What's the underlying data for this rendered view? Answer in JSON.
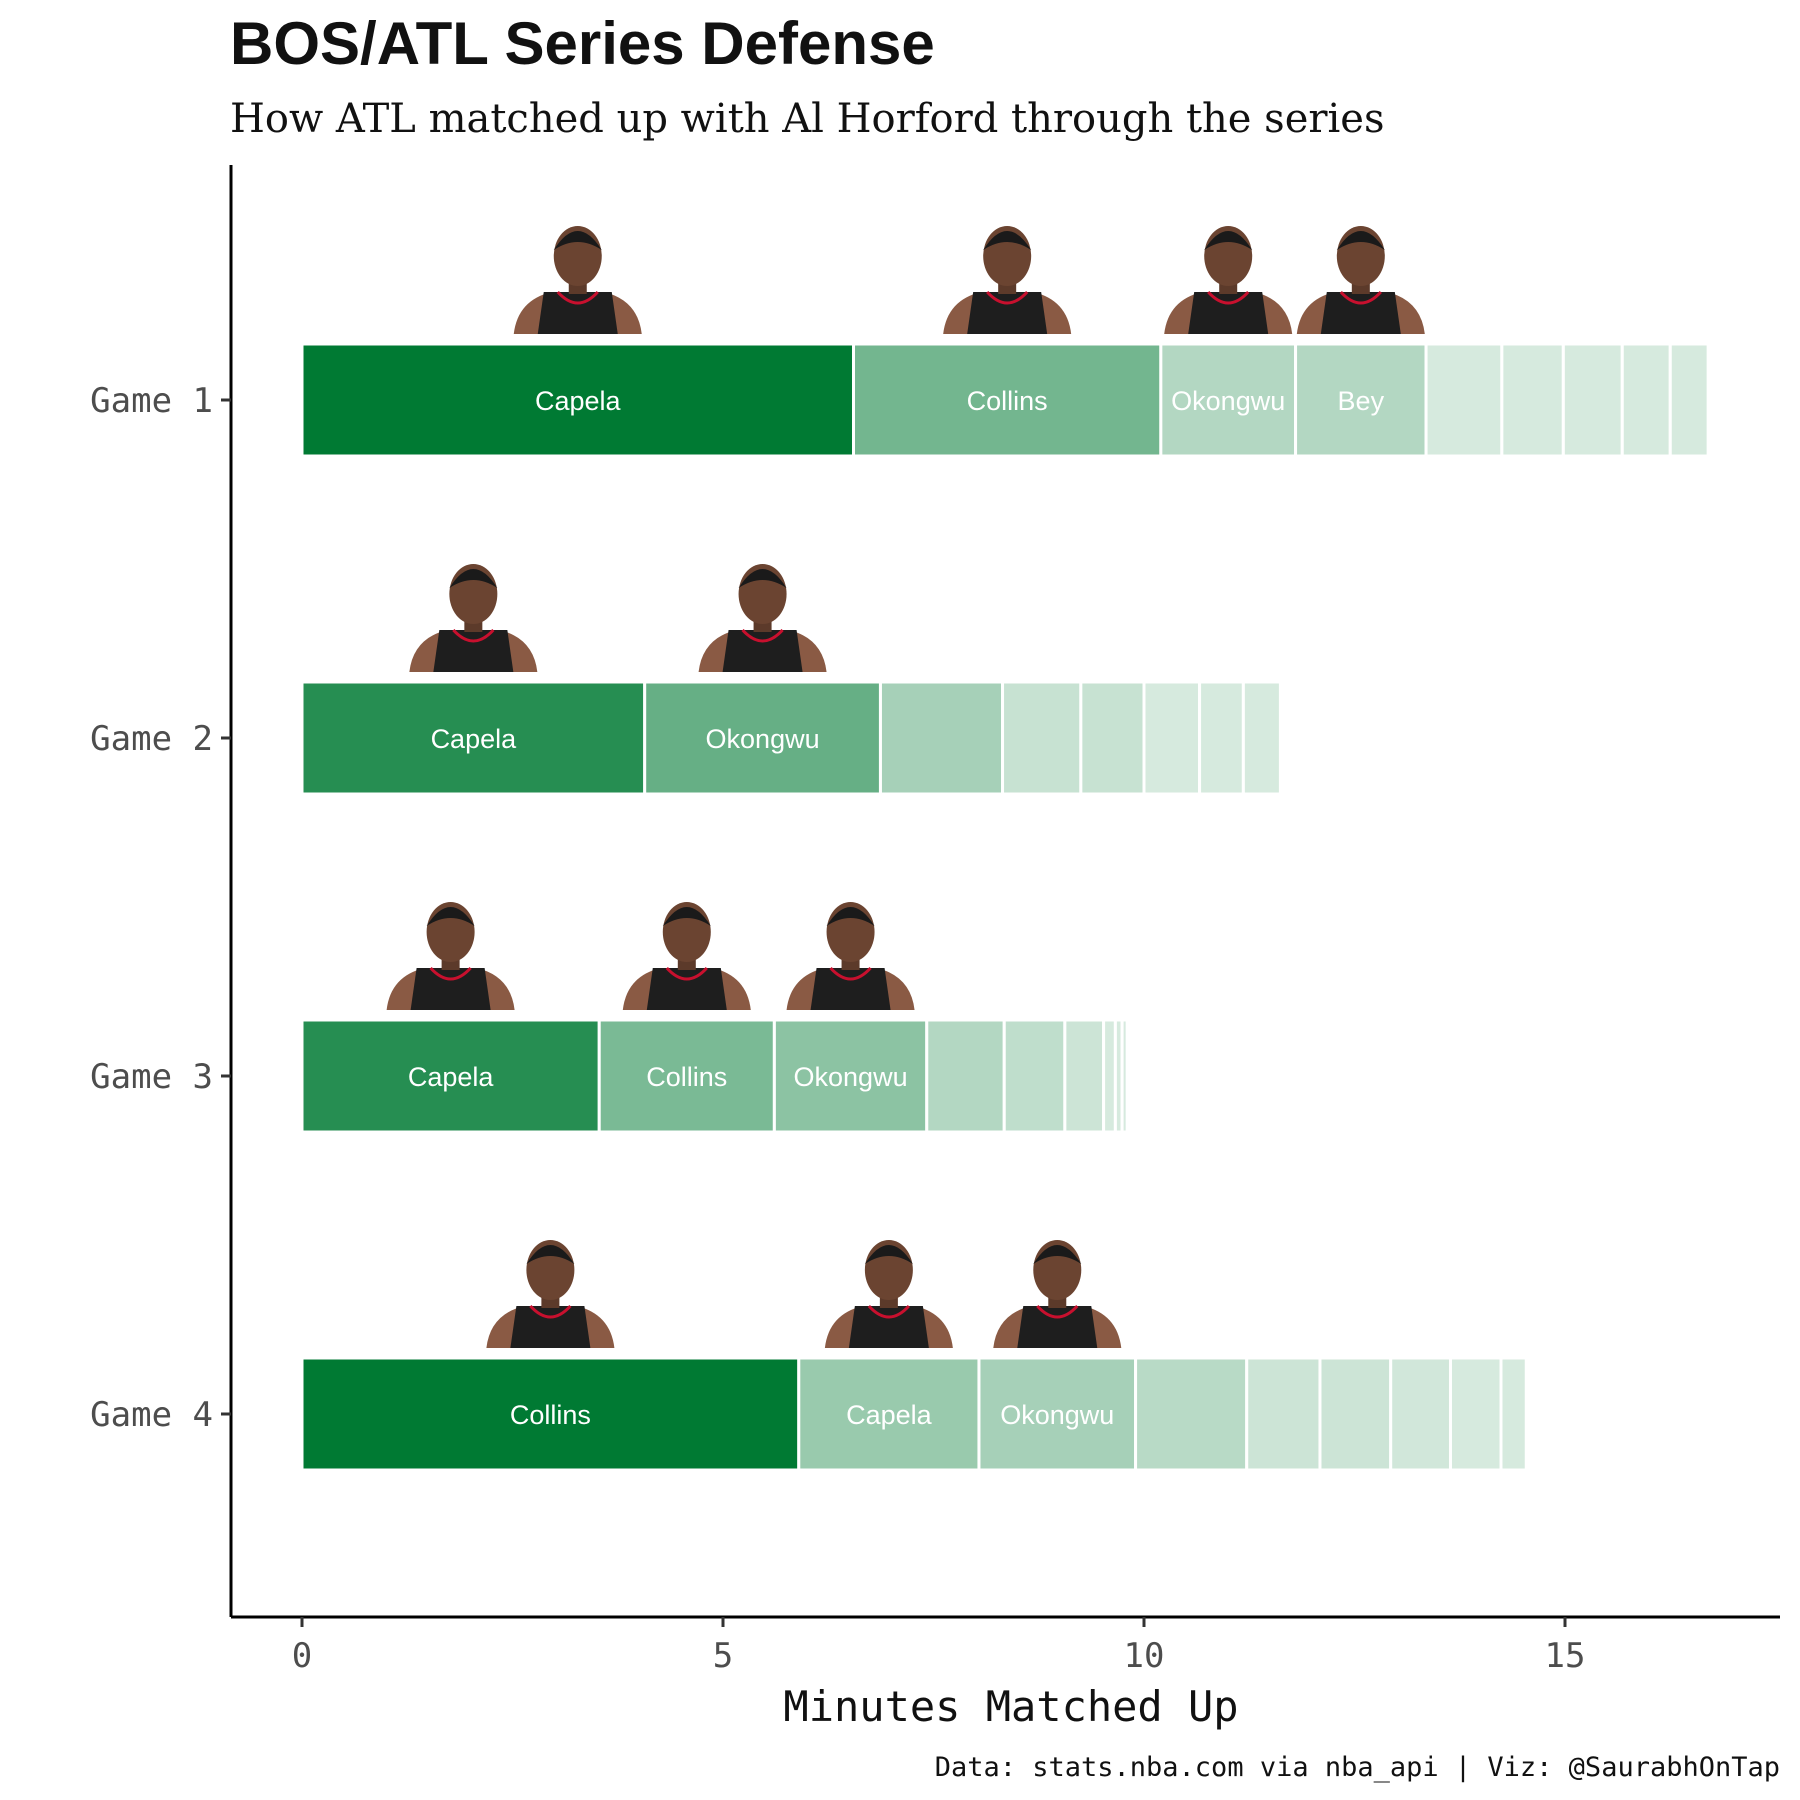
{
  "chart_data": {
    "type": "bar",
    "orientation": "horizontal",
    "stacked": true,
    "title": "BOS/ATL Series Defense",
    "subtitle": "How ATL matched up with Al Horford through the series",
    "xlabel": "Minutes Matched Up",
    "ylabel": "",
    "xlim": [
      0,
      17.6
    ],
    "xticks": [
      "0",
      "5",
      "10",
      "15"
    ],
    "caption": "Data: stats.nba.com via nba_api | Viz: @SaurabhOnTap",
    "grid": false,
    "legend": "none",
    "color_base": "#007a33",
    "categories": [
      "Game 1",
      "Game 2",
      "Game 3",
      "Game 4"
    ],
    "games": [
      {
        "name": "Game 1",
        "segments": [
          {
            "label": "Capela",
            "minutes": 6.55,
            "shade": 1.0
          },
          {
            "label": "Collins",
            "minutes": 3.65,
            "shade": 0.55
          },
          {
            "label": "Okongwu",
            "minutes": 1.6,
            "shade": 0.3
          },
          {
            "label": "Bey",
            "minutes": 1.55,
            "shade": 0.3
          },
          {
            "label": "",
            "minutes": 0.9,
            "shade": 0.16
          },
          {
            "label": "",
            "minutes": 0.73,
            "shade": 0.16
          },
          {
            "label": "",
            "minutes": 0.7,
            "shade": 0.16
          },
          {
            "label": "",
            "minutes": 0.57,
            "shade": 0.16
          },
          {
            "label": "",
            "minutes": 0.45,
            "shade": 0.16
          }
        ]
      },
      {
        "name": "Game 2",
        "segments": [
          {
            "label": "Capela",
            "minutes": 4.07,
            "shade": 0.85
          },
          {
            "label": "Okongwu",
            "minutes": 2.8,
            "shade": 0.6
          },
          {
            "label": "",
            "minutes": 1.45,
            "shade": 0.35
          },
          {
            "label": "",
            "minutes": 0.93,
            "shade": 0.22
          },
          {
            "label": "",
            "minutes": 0.75,
            "shade": 0.22
          },
          {
            "label": "",
            "minutes": 0.66,
            "shade": 0.16
          },
          {
            "label": "",
            "minutes": 0.52,
            "shade": 0.16
          },
          {
            "label": "",
            "minutes": 0.44,
            "shade": 0.16
          }
        ]
      },
      {
        "name": "Game 3",
        "segments": [
          {
            "label": "Capela",
            "minutes": 3.53,
            "shade": 0.85
          },
          {
            "label": "Collins",
            "minutes": 2.08,
            "shade": 0.52
          },
          {
            "label": "Okongwu",
            "minutes": 1.81,
            "shade": 0.45
          },
          {
            "label": "",
            "minutes": 0.92,
            "shade": 0.3
          },
          {
            "label": "",
            "minutes": 0.72,
            "shade": 0.25
          },
          {
            "label": "",
            "minutes": 0.46,
            "shade": 0.2
          },
          {
            "label": "",
            "minutes": 0.14,
            "shade": 0.16
          },
          {
            "label": "",
            "minutes": 0.08,
            "shade": 0.16
          },
          {
            "label": "",
            "minutes": 0.06,
            "shade": 0.16
          }
        ]
      },
      {
        "name": "Game 4",
        "segments": [
          {
            "label": "Collins",
            "minutes": 5.9,
            "shade": 1.0
          },
          {
            "label": "Capela",
            "minutes": 2.14,
            "shade": 0.4
          },
          {
            "label": "Okongwu",
            "minutes": 1.86,
            "shade": 0.35
          },
          {
            "label": "",
            "minutes": 1.32,
            "shade": 0.28
          },
          {
            "label": "",
            "minutes": 0.87,
            "shade": 0.2
          },
          {
            "label": "",
            "minutes": 0.84,
            "shade": 0.2
          },
          {
            "label": "",
            "minutes": 0.71,
            "shade": 0.18
          },
          {
            "label": "",
            "minutes": 0.6,
            "shade": 0.16
          },
          {
            "label": "",
            "minutes": 0.3,
            "shade": 0.16
          }
        ]
      }
    ]
  }
}
